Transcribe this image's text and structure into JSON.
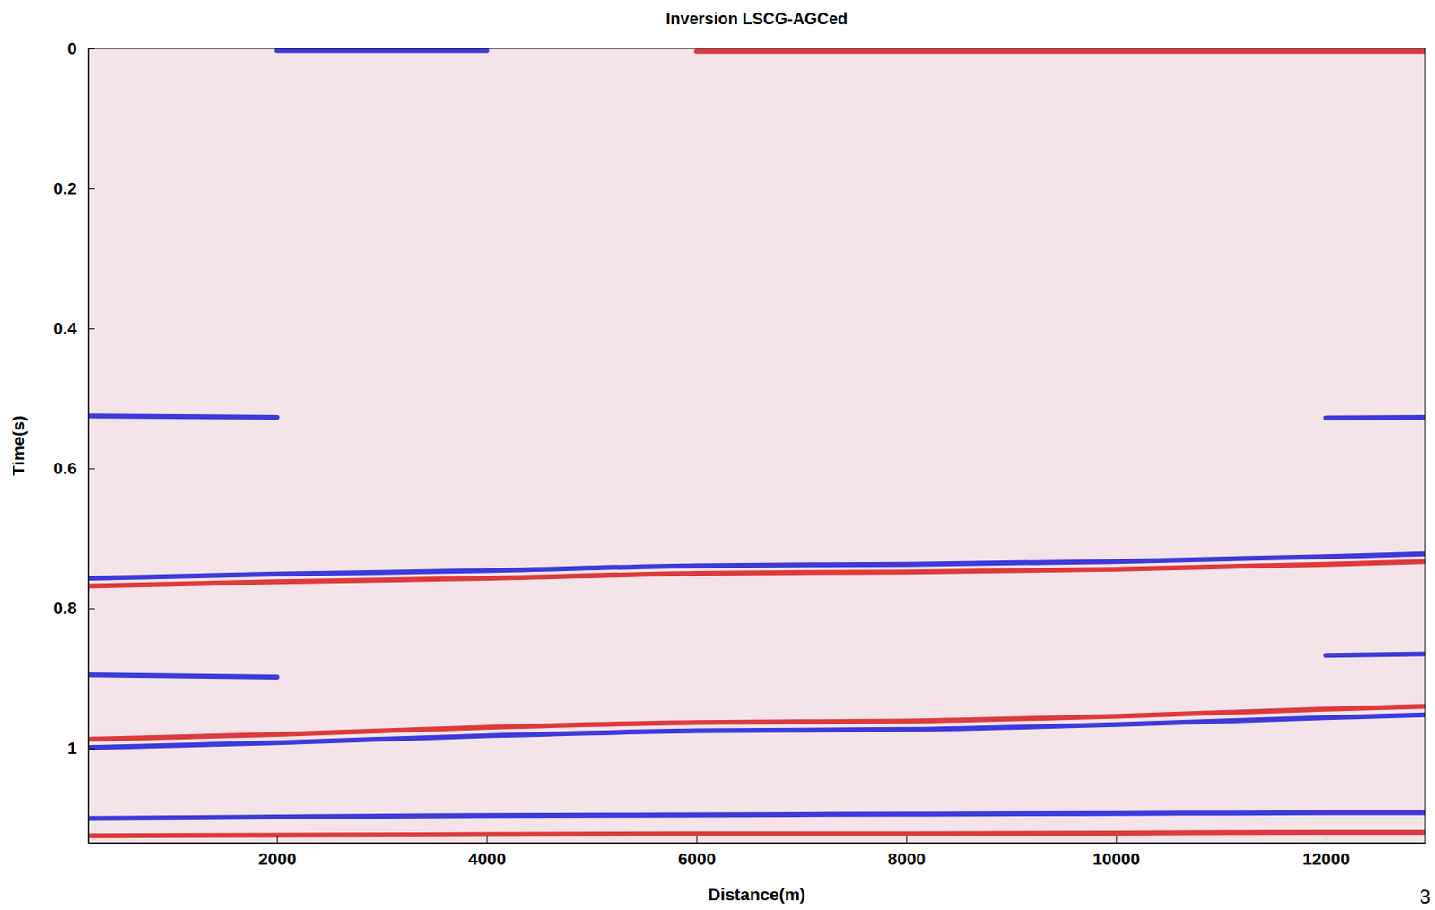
{
  "chart_data": {
    "type": "line",
    "title": "Inversion LSCG-AGCed",
    "x_label": "Distance(m)",
    "y_label": "Time(s)",
    "annotation": "3",
    "x": [
      200,
      2000,
      4000,
      6000,
      8000,
      10000,
      12000,
      12950
    ],
    "xlim": [
      200,
      12950
    ],
    "xticks": [
      2000,
      4000,
      6000,
      8000,
      10000,
      12000
    ],
    "ylim": [
      0,
      1.135
    ],
    "yticks": [
      0,
      0.2,
      0.4,
      0.6,
      0.8,
      1
    ],
    "grid": false,
    "series": [
      {
        "color": "#d81c1c",
        "values": [
          null,
          null,
          null,
          0.004,
          0.004,
          0.004,
          0.004,
          0.004
        ]
      },
      {
        "color": "#1c1cd8",
        "values": [
          null,
          0.003,
          0.003,
          null,
          null,
          null,
          null,
          null
        ]
      },
      {
        "color": "#1c1cd8",
        "values": [
          0.525,
          0.527,
          null,
          null,
          null,
          null,
          0.528,
          0.527
        ]
      },
      {
        "color": "#1c1cd8",
        "values": [
          0.757,
          0.751,
          0.746,
          0.739,
          0.737,
          0.733,
          0.726,
          0.722
        ]
      },
      {
        "color": "#d81c1c",
        "values": [
          0.768,
          0.762,
          0.757,
          0.75,
          0.748,
          0.744,
          0.737,
          0.733
        ]
      },
      {
        "color": "#1c1cd8",
        "values": [
          0.895,
          0.898,
          null,
          null,
          null,
          null,
          0.867,
          0.865
        ]
      },
      {
        "color": "#d81c1c",
        "values": [
          0.987,
          0.98,
          0.97,
          0.963,
          0.961,
          0.954,
          0.944,
          0.94
        ]
      },
      {
        "color": "#1c1cd8",
        "values": [
          0.999,
          0.992,
          0.982,
          0.975,
          0.973,
          0.966,
          0.956,
          0.952
        ]
      },
      {
        "color": "#1c1cd8",
        "values": [
          1.1,
          1.098,
          1.096,
          1.095,
          1.094,
          1.093,
          1.092,
          1.092
        ]
      },
      {
        "color": "#d81c1c",
        "values": [
          1.125,
          1.124,
          1.123,
          1.122,
          1.122,
          1.121,
          1.12,
          1.12
        ]
      }
    ]
  }
}
